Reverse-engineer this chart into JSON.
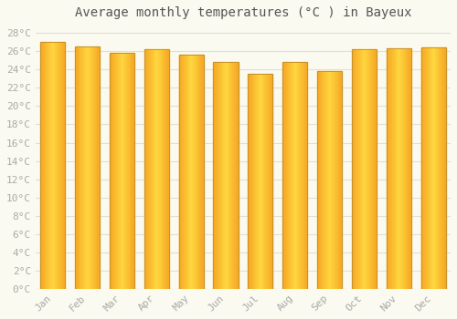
{
  "title": "Average monthly temperatures (°C ) in Bayeux",
  "months": [
    "Jan",
    "Feb",
    "Mar",
    "Apr",
    "May",
    "Jun",
    "Jul",
    "Aug",
    "Sep",
    "Oct",
    "Nov",
    "Dec"
  ],
  "values": [
    27.0,
    26.5,
    25.8,
    26.2,
    25.6,
    24.8,
    23.5,
    24.8,
    23.8,
    26.2,
    26.3,
    26.4
  ],
  "bar_color_center": "#FFD740",
  "bar_color_edge": "#F5A623",
  "bar_border_color": "#C8922A",
  "background_color": "#FAFAF0",
  "grid_color": "#E0E0D8",
  "ylim": [
    0,
    29
  ],
  "ytick_step": 2,
  "title_fontsize": 10,
  "tick_fontsize": 8,
  "tick_color": "#AAAAAA",
  "title_color": "#555555"
}
